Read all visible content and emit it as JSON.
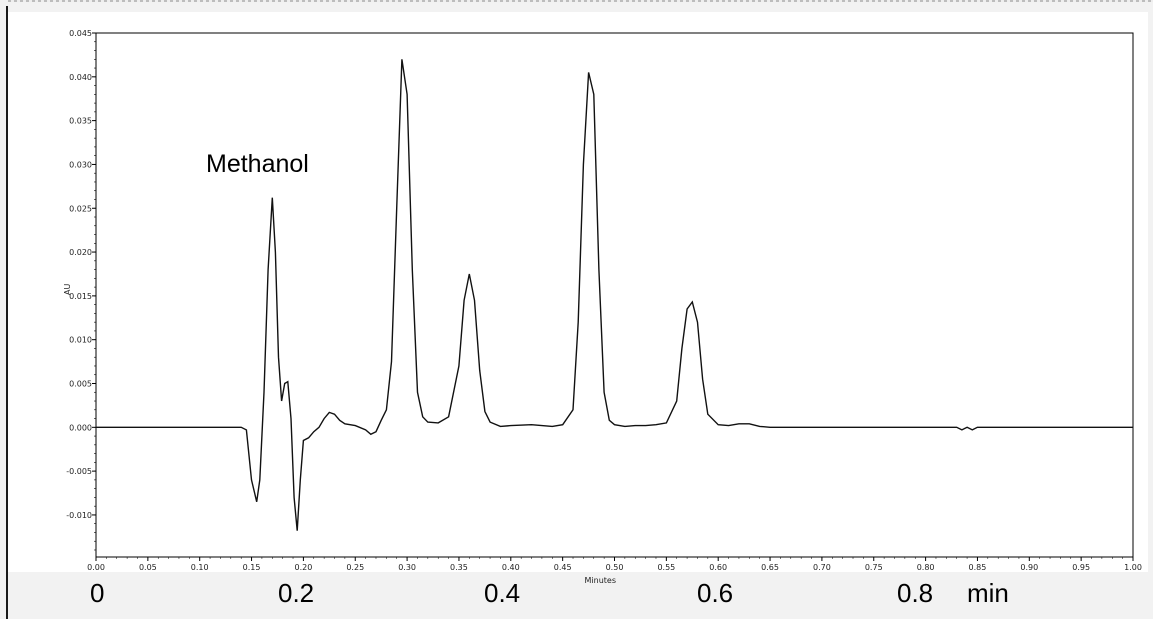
{
  "chart_data": {
    "type": "line",
    "title": "",
    "xlabel": "Minutes",
    "ylabel": "AU",
    "xlim": [
      0.0,
      1.0
    ],
    "ylim": [
      -0.015,
      0.045
    ],
    "x_ticks": [
      "0.00",
      "0.05",
      "0.10",
      "0.15",
      "0.20",
      "0.25",
      "0.30",
      "0.35",
      "0.40",
      "0.45",
      "0.50",
      "0.55",
      "0.60",
      "0.65",
      "0.70",
      "0.75",
      "0.80",
      "0.85",
      "0.90",
      "0.95",
      "1.00"
    ],
    "y_ticks": [
      "0.045",
      "0.040",
      "0.035",
      "0.030",
      "0.025",
      "0.020",
      "0.015",
      "0.010",
      "0.005",
      "0.000",
      "-0.005",
      "-0.010"
    ],
    "annotation": "Methanol",
    "grid": false,
    "series": [
      {
        "x": [
          0.0,
          0.14,
          0.145,
          0.15,
          0.155,
          0.158,
          0.162,
          0.166,
          0.17,
          0.173,
          0.176,
          0.179,
          0.182,
          0.185,
          0.188,
          0.191,
          0.194,
          0.197,
          0.2,
          0.205,
          0.21,
          0.215,
          0.22,
          0.225,
          0.23,
          0.235,
          0.24,
          0.25,
          0.26,
          0.265,
          0.27,
          0.275,
          0.28,
          0.285,
          0.29,
          0.295,
          0.3,
          0.305,
          0.31,
          0.315,
          0.32,
          0.33,
          0.34,
          0.35,
          0.355,
          0.36,
          0.365,
          0.37,
          0.375,
          0.38,
          0.39,
          0.4,
          0.42,
          0.43,
          0.44,
          0.45,
          0.46,
          0.465,
          0.47,
          0.475,
          0.48,
          0.485,
          0.49,
          0.495,
          0.5,
          0.51,
          0.52,
          0.53,
          0.54,
          0.55,
          0.56,
          0.565,
          0.57,
          0.575,
          0.58,
          0.585,
          0.59,
          0.6,
          0.61,
          0.62,
          0.63,
          0.64,
          0.65,
          0.7,
          0.75,
          0.8,
          0.82,
          0.83,
          0.835,
          0.84,
          0.845,
          0.85,
          0.86,
          0.9,
          1.0
        ],
        "y": [
          0.0,
          0.0,
          -0.0003,
          -0.006,
          -0.0085,
          -0.006,
          0.004,
          0.018,
          0.0262,
          0.02,
          0.008,
          0.003,
          0.005,
          0.0052,
          0.001,
          -0.008,
          -0.0118,
          -0.006,
          -0.0015,
          -0.0012,
          -0.0005,
          0.0,
          0.001,
          0.0017,
          0.0015,
          0.0008,
          0.0004,
          0.0002,
          -0.0003,
          -0.0008,
          -0.0005,
          0.0008,
          0.002,
          0.0075,
          0.025,
          0.042,
          0.038,
          0.018,
          0.004,
          0.0012,
          0.0006,
          0.0005,
          0.0012,
          0.007,
          0.0145,
          0.0175,
          0.0145,
          0.0065,
          0.0018,
          0.0006,
          0.0001,
          0.0002,
          0.0003,
          0.0002,
          0.0001,
          0.0003,
          0.002,
          0.012,
          0.03,
          0.0405,
          0.038,
          0.018,
          0.004,
          0.0008,
          0.0003,
          0.0001,
          0.0002,
          0.0002,
          0.0003,
          0.0005,
          0.003,
          0.009,
          0.0135,
          0.0143,
          0.012,
          0.0055,
          0.0015,
          0.0003,
          0.0002,
          0.0004,
          0.0004,
          0.0001,
          0.0,
          0.0,
          0.0,
          0.0,
          0.0,
          0.0,
          -0.0003,
          0.0,
          -0.0003,
          0.0,
          0.0,
          0.0,
          0.0
        ]
      }
    ]
  },
  "overlay_labels": {
    "x0": "0",
    "x1": "0.2",
    "x2": "0.4",
    "x3": "0.6",
    "x4": "0.8",
    "unit": "min"
  }
}
